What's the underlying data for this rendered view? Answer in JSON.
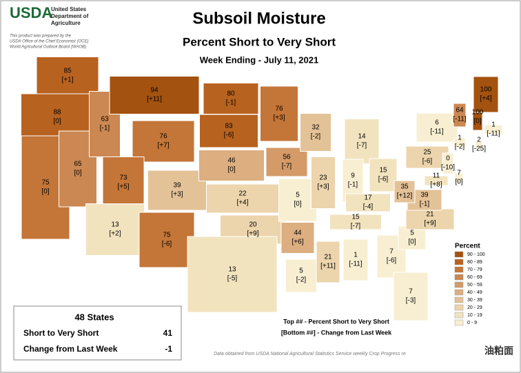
{
  "header": {
    "logo": "USDA",
    "agency": [
      "United States",
      "Department of",
      "Agriculture"
    ],
    "disclaimer": [
      "This product was prepared by the",
      "USDA Office of the Chief Economist (OCE)",
      "World Agricultural Outlook Board (WAOB)"
    ],
    "title": "Subsoil Moisture",
    "subtitle": "Percent Short to Very Short",
    "week": "Week Ending - July 11, 2021"
  },
  "legend": {
    "title": "Percent",
    "bins": [
      {
        "label": "90 - 100",
        "color": "#a3520f"
      },
      {
        "label": "80 - 89",
        "color": "#b8621f"
      },
      {
        "label": "70 - 79",
        "color": "#c47538"
      },
      {
        "label": "60 - 69",
        "color": "#cc8852"
      },
      {
        "label": "50 - 59",
        "color": "#d49a68"
      },
      {
        "label": "40 - 49",
        "color": "#dcae80"
      },
      {
        "label": "30 - 39",
        "color": "#e4c297"
      },
      {
        "label": "20 - 29",
        "color": "#ecd4ac"
      },
      {
        "label": "10 - 19",
        "color": "#f2e3bf"
      },
      {
        "label": "0 - 9",
        "color": "#f8efd2"
      }
    ]
  },
  "states": [
    {
      "value": 85,
      "change": "[+1]"
    },
    {
      "value": 88,
      "change": "[0]"
    },
    {
      "value": 75,
      "change": "[0]"
    },
    {
      "value": 65,
      "change": "[0]"
    },
    {
      "value": 63,
      "change": "[-1]"
    },
    {
      "value": 94,
      "change": "[+11]"
    },
    {
      "value": 76,
      "change": "[+7]"
    },
    {
      "value": 73,
      "change": "[+5]"
    },
    {
      "value": 13,
      "change": "[+2]"
    },
    {
      "value": 39,
      "change": "[+3]"
    },
    {
      "value": 75,
      "change": "[-6]"
    },
    {
      "value": 80,
      "change": "[-1]"
    },
    {
      "value": 83,
      "change": "[-6]"
    },
    {
      "value": 46,
      "change": "[0]"
    },
    {
      "value": 22,
      "change": "[+4]"
    },
    {
      "value": 20,
      "change": "[+9]"
    },
    {
      "value": 13,
      "change": "[-5]"
    },
    {
      "value": 76,
      "change": "[+3]"
    },
    {
      "value": 56,
      "change": "[-7]"
    },
    {
      "value": 5,
      "change": "[0]"
    },
    {
      "value": 44,
      "change": "[+6]"
    },
    {
      "value": 5,
      "change": "[-2]"
    },
    {
      "value": 32,
      "change": "[-2]"
    },
    {
      "value": 23,
      "change": "[+3]"
    },
    {
      "value": 14,
      "change": "[-7]"
    },
    {
      "value": 9,
      "change": "[-1]"
    },
    {
      "value": 15,
      "change": "[-6]"
    },
    {
      "value": 17,
      "change": "[-4]"
    },
    {
      "value": 15,
      "change": "[-7]"
    },
    {
      "value": 21,
      "change": "[+11]"
    },
    {
      "value": 1,
      "change": "[-11]"
    },
    {
      "value": 7,
      "change": "[-6]"
    },
    {
      "value": 7,
      "change": "[-3]"
    },
    {
      "value": 5,
      "change": "[0]"
    },
    {
      "value": 21,
      "change": "[+9]"
    },
    {
      "value": 39,
      "change": "[-1]"
    },
    {
      "value": 35,
      "change": "[+12]"
    },
    {
      "value": 25,
      "change": "[-6]"
    },
    {
      "value": 6,
      "change": "[-11]"
    },
    {
      "value": 64,
      "change": "[-11]"
    },
    {
      "value": 100,
      "change": "[0]"
    },
    {
      "value": 100,
      "change": "[+4]"
    },
    {
      "value": 1,
      "change": "[-11]"
    },
    {
      "value": 1,
      "change": "[-2]"
    },
    {
      "value": 2,
      "change": "[-25]"
    },
    {
      "value": 0,
      "change": "[-10]"
    },
    {
      "value": 7,
      "change": "[0]"
    },
    {
      "value": 11,
      "change": "[+8]"
    }
  ],
  "summary": {
    "title": "48 States",
    "rows": [
      {
        "label": "Short to Very Short",
        "value": 41
      },
      {
        "label": "Change from Last Week",
        "value": -1
      }
    ]
  },
  "notes": [
    "Top ## - Percent Short to Very Short",
    "[Bottom ##] - Change from Last Week"
  ],
  "source": "Data obtained from USDA National Agricultural Statistics Service weekly Crop Progress re",
  "watermark": "油粕面"
}
